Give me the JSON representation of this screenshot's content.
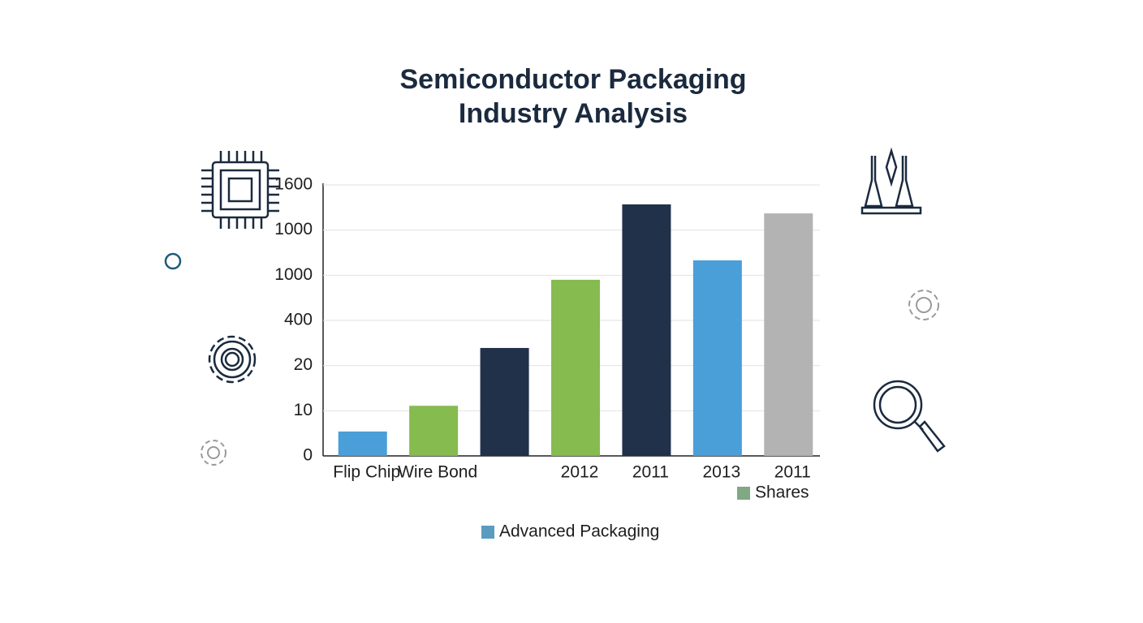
{
  "chart_data": {
    "type": "bar",
    "title_lines": [
      "Semiconductor Packaging",
      "Industry Analysis"
    ],
    "categories": [
      "Flip Chip",
      "Wire Bond",
      null,
      "2012",
      "2011",
      "2013",
      "2011"
    ],
    "values": [
      5.4,
      11.1,
      23.9,
      39,
      55.7,
      43.3,
      53.7
    ],
    "colors": [
      "#4a9fd8",
      "#86bb4f",
      "#22314a",
      "#86bb4f",
      "#22314a",
      "#4a9fd8",
      "#b3b3b3"
    ],
    "ylim": [
      0,
      60
    ],
    "yticks": [
      0,
      10,
      20,
      {
        "value": 30,
        "label": "400"
      },
      {
        "value": 40,
        "label": "1000"
      },
      {
        "value": 50,
        "label": "1000"
      },
      {
        "value": 60,
        "label": "1600"
      }
    ],
    "grid": true,
    "legend": [
      {
        "label": "Shares",
        "color": "#7fa883"
      },
      {
        "label": "Advanced Packaging",
        "color": "#5b9bbf"
      }
    ]
  }
}
